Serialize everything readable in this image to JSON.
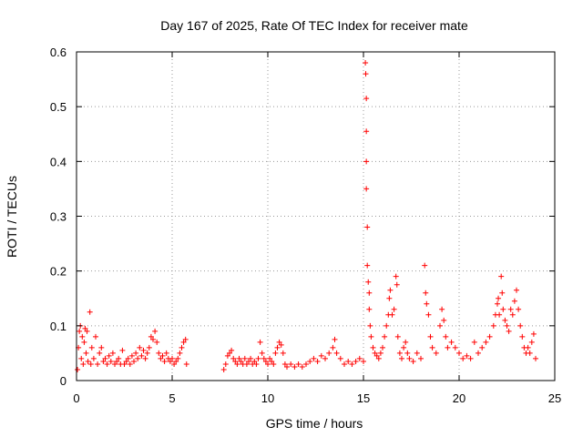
{
  "chart_data": {
    "type": "scatter",
    "title": "Day 167 of 2025, Rate Of TEC Index for receiver mate",
    "xlabel": "GPS time / hours",
    "ylabel": "ROTI / TECUs",
    "xlim": [
      0,
      25
    ],
    "ylim": [
      0,
      0.6
    ],
    "xticks": [
      0,
      5,
      10,
      15,
      20,
      25
    ],
    "xtick_labels": [
      "0",
      "5",
      "10",
      "15",
      "20",
      "25"
    ],
    "yticks": [
      0,
      0.1,
      0.2,
      0.3,
      0.4,
      0.5,
      0.6
    ],
    "ytick_labels": [
      "0",
      "0.1",
      "0.2",
      "0.3",
      "0.4",
      "0.5",
      "0.6"
    ],
    "grid": true,
    "marker": "+",
    "series": [
      {
        "name": "ROTI",
        "color": "#ff0000",
        "points": [
          [
            0.05,
            0.02
          ],
          [
            0.1,
            0.06
          ],
          [
            0.15,
            0.09
          ],
          [
            0.2,
            0.1
          ],
          [
            0.25,
            0.04
          ],
          [
            0.3,
            0.08
          ],
          [
            0.35,
            0.03
          ],
          [
            0.4,
            0.07
          ],
          [
            0.45,
            0.095
          ],
          [
            0.5,
            0.05
          ],
          [
            0.55,
            0.09
          ],
          [
            0.6,
            0.035
          ],
          [
            0.7,
            0.125
          ],
          [
            0.75,
            0.03
          ],
          [
            0.8,
            0.06
          ],
          [
            0.9,
            0.04
          ],
          [
            1.0,
            0.08
          ],
          [
            1.1,
            0.03
          ],
          [
            1.2,
            0.05
          ],
          [
            1.3,
            0.06
          ],
          [
            1.4,
            0.035
          ],
          [
            1.5,
            0.04
          ],
          [
            1.6,
            0.03
          ],
          [
            1.7,
            0.045
          ],
          [
            1.8,
            0.035
          ],
          [
            1.9,
            0.05
          ],
          [
            2.0,
            0.03
          ],
          [
            2.1,
            0.035
          ],
          [
            2.2,
            0.04
          ],
          [
            2.3,
            0.03
          ],
          [
            2.4,
            0.055
          ],
          [
            2.5,
            0.03
          ],
          [
            2.6,
            0.035
          ],
          [
            2.7,
            0.04
          ],
          [
            2.8,
            0.03
          ],
          [
            2.9,
            0.045
          ],
          [
            3.0,
            0.035
          ],
          [
            3.1,
            0.05
          ],
          [
            3.2,
            0.04
          ],
          [
            3.3,
            0.06
          ],
          [
            3.4,
            0.045
          ],
          [
            3.5,
            0.055
          ],
          [
            3.6,
            0.04
          ],
          [
            3.7,
            0.05
          ],
          [
            3.8,
            0.06
          ],
          [
            3.9,
            0.08
          ],
          [
            4.0,
            0.075
          ],
          [
            4.1,
            0.09
          ],
          [
            4.2,
            0.07
          ],
          [
            4.3,
            0.05
          ],
          [
            4.4,
            0.04
          ],
          [
            4.5,
            0.045
          ],
          [
            4.6,
            0.035
          ],
          [
            4.7,
            0.05
          ],
          [
            4.8,
            0.04
          ],
          [
            4.9,
            0.035
          ],
          [
            5.0,
            0.04
          ],
          [
            5.1,
            0.03
          ],
          [
            5.2,
            0.035
          ],
          [
            5.3,
            0.04
          ],
          [
            5.4,
            0.05
          ],
          [
            5.5,
            0.06
          ],
          [
            5.6,
            0.07
          ],
          [
            5.7,
            0.075
          ],
          [
            5.75,
            0.03
          ],
          [
            7.7,
            0.02
          ],
          [
            7.8,
            0.03
          ],
          [
            7.9,
            0.045
          ],
          [
            8.0,
            0.05
          ],
          [
            8.1,
            0.055
          ],
          [
            8.2,
            0.04
          ],
          [
            8.3,
            0.035
          ],
          [
            8.4,
            0.03
          ],
          [
            8.5,
            0.04
          ],
          [
            8.6,
            0.035
          ],
          [
            8.7,
            0.03
          ],
          [
            8.8,
            0.04
          ],
          [
            8.9,
            0.03
          ],
          [
            9.0,
            0.035
          ],
          [
            9.1,
            0.04
          ],
          [
            9.2,
            0.03
          ],
          [
            9.3,
            0.035
          ],
          [
            9.4,
            0.03
          ],
          [
            9.5,
            0.04
          ],
          [
            9.6,
            0.07
          ],
          [
            9.7,
            0.05
          ],
          [
            9.8,
            0.04
          ],
          [
            9.9,
            0.035
          ],
          [
            10.0,
            0.03
          ],
          [
            10.1,
            0.04
          ],
          [
            10.2,
            0.035
          ],
          [
            10.3,
            0.03
          ],
          [
            10.4,
            0.05
          ],
          [
            10.5,
            0.06
          ],
          [
            10.6,
            0.07
          ],
          [
            10.7,
            0.065
          ],
          [
            10.8,
            0.05
          ],
          [
            10.9,
            0.03
          ],
          [
            11.0,
            0.025
          ],
          [
            11.2,
            0.03
          ],
          [
            11.4,
            0.025
          ],
          [
            11.6,
            0.03
          ],
          [
            11.8,
            0.025
          ],
          [
            12.0,
            0.03
          ],
          [
            12.2,
            0.035
          ],
          [
            12.4,
            0.04
          ],
          [
            12.6,
            0.035
          ],
          [
            12.8,
            0.045
          ],
          [
            13.0,
            0.04
          ],
          [
            13.2,
            0.05
          ],
          [
            13.4,
            0.06
          ],
          [
            13.5,
            0.075
          ],
          [
            13.6,
            0.05
          ],
          [
            13.8,
            0.04
          ],
          [
            14.0,
            0.03
          ],
          [
            14.2,
            0.035
          ],
          [
            14.4,
            0.03
          ],
          [
            14.6,
            0.035
          ],
          [
            14.8,
            0.04
          ],
          [
            15.0,
            0.035
          ],
          [
            15.1,
            0.58
          ],
          [
            15.12,
            0.56
          ],
          [
            15.15,
            0.515
          ],
          [
            15.15,
            0.455
          ],
          [
            15.15,
            0.4
          ],
          [
            15.15,
            0.35
          ],
          [
            15.2,
            0.28
          ],
          [
            15.2,
            0.21
          ],
          [
            15.25,
            0.18
          ],
          [
            15.3,
            0.16
          ],
          [
            15.3,
            0.13
          ],
          [
            15.35,
            0.1
          ],
          [
            15.4,
            0.08
          ],
          [
            15.5,
            0.06
          ],
          [
            15.6,
            0.05
          ],
          [
            15.7,
            0.045
          ],
          [
            15.8,
            0.04
          ],
          [
            15.9,
            0.05
          ],
          [
            16.0,
            0.06
          ],
          [
            16.1,
            0.08
          ],
          [
            16.2,
            0.1
          ],
          [
            16.3,
            0.12
          ],
          [
            16.35,
            0.15
          ],
          [
            16.4,
            0.165
          ],
          [
            16.5,
            0.12
          ],
          [
            16.6,
            0.13
          ],
          [
            16.7,
            0.19
          ],
          [
            16.75,
            0.175
          ],
          [
            16.8,
            0.08
          ],
          [
            16.9,
            0.05
          ],
          [
            17.0,
            0.04
          ],
          [
            17.1,
            0.06
          ],
          [
            17.2,
            0.07
          ],
          [
            17.3,
            0.05
          ],
          [
            17.4,
            0.04
          ],
          [
            17.6,
            0.035
          ],
          [
            17.8,
            0.05
          ],
          [
            18.0,
            0.04
          ],
          [
            18.2,
            0.21
          ],
          [
            18.25,
            0.16
          ],
          [
            18.3,
            0.14
          ],
          [
            18.4,
            0.12
          ],
          [
            18.5,
            0.08
          ],
          [
            18.6,
            0.06
          ],
          [
            18.8,
            0.05
          ],
          [
            19.0,
            0.1
          ],
          [
            19.1,
            0.13
          ],
          [
            19.2,
            0.11
          ],
          [
            19.3,
            0.08
          ],
          [
            19.4,
            0.06
          ],
          [
            19.6,
            0.07
          ],
          [
            19.8,
            0.06
          ],
          [
            20.0,
            0.05
          ],
          [
            20.2,
            0.04
          ],
          [
            20.4,
            0.045
          ],
          [
            20.6,
            0.04
          ],
          [
            20.8,
            0.07
          ],
          [
            21.0,
            0.05
          ],
          [
            21.2,
            0.06
          ],
          [
            21.4,
            0.07
          ],
          [
            21.6,
            0.08
          ],
          [
            21.8,
            0.1
          ],
          [
            21.9,
            0.12
          ],
          [
            22.0,
            0.14
          ],
          [
            22.05,
            0.15
          ],
          [
            22.1,
            0.12
          ],
          [
            22.2,
            0.19
          ],
          [
            22.25,
            0.16
          ],
          [
            22.3,
            0.13
          ],
          [
            22.4,
            0.11
          ],
          [
            22.5,
            0.1
          ],
          [
            22.6,
            0.09
          ],
          [
            22.7,
            0.13
          ],
          [
            22.8,
            0.12
          ],
          [
            22.9,
            0.145
          ],
          [
            23.0,
            0.165
          ],
          [
            23.1,
            0.13
          ],
          [
            23.2,
            0.1
          ],
          [
            23.3,
            0.08
          ],
          [
            23.4,
            0.06
          ],
          [
            23.5,
            0.05
          ],
          [
            23.6,
            0.06
          ],
          [
            23.7,
            0.05
          ],
          [
            23.8,
            0.07
          ],
          [
            23.9,
            0.085
          ],
          [
            24.0,
            0.04
          ]
        ]
      }
    ]
  }
}
